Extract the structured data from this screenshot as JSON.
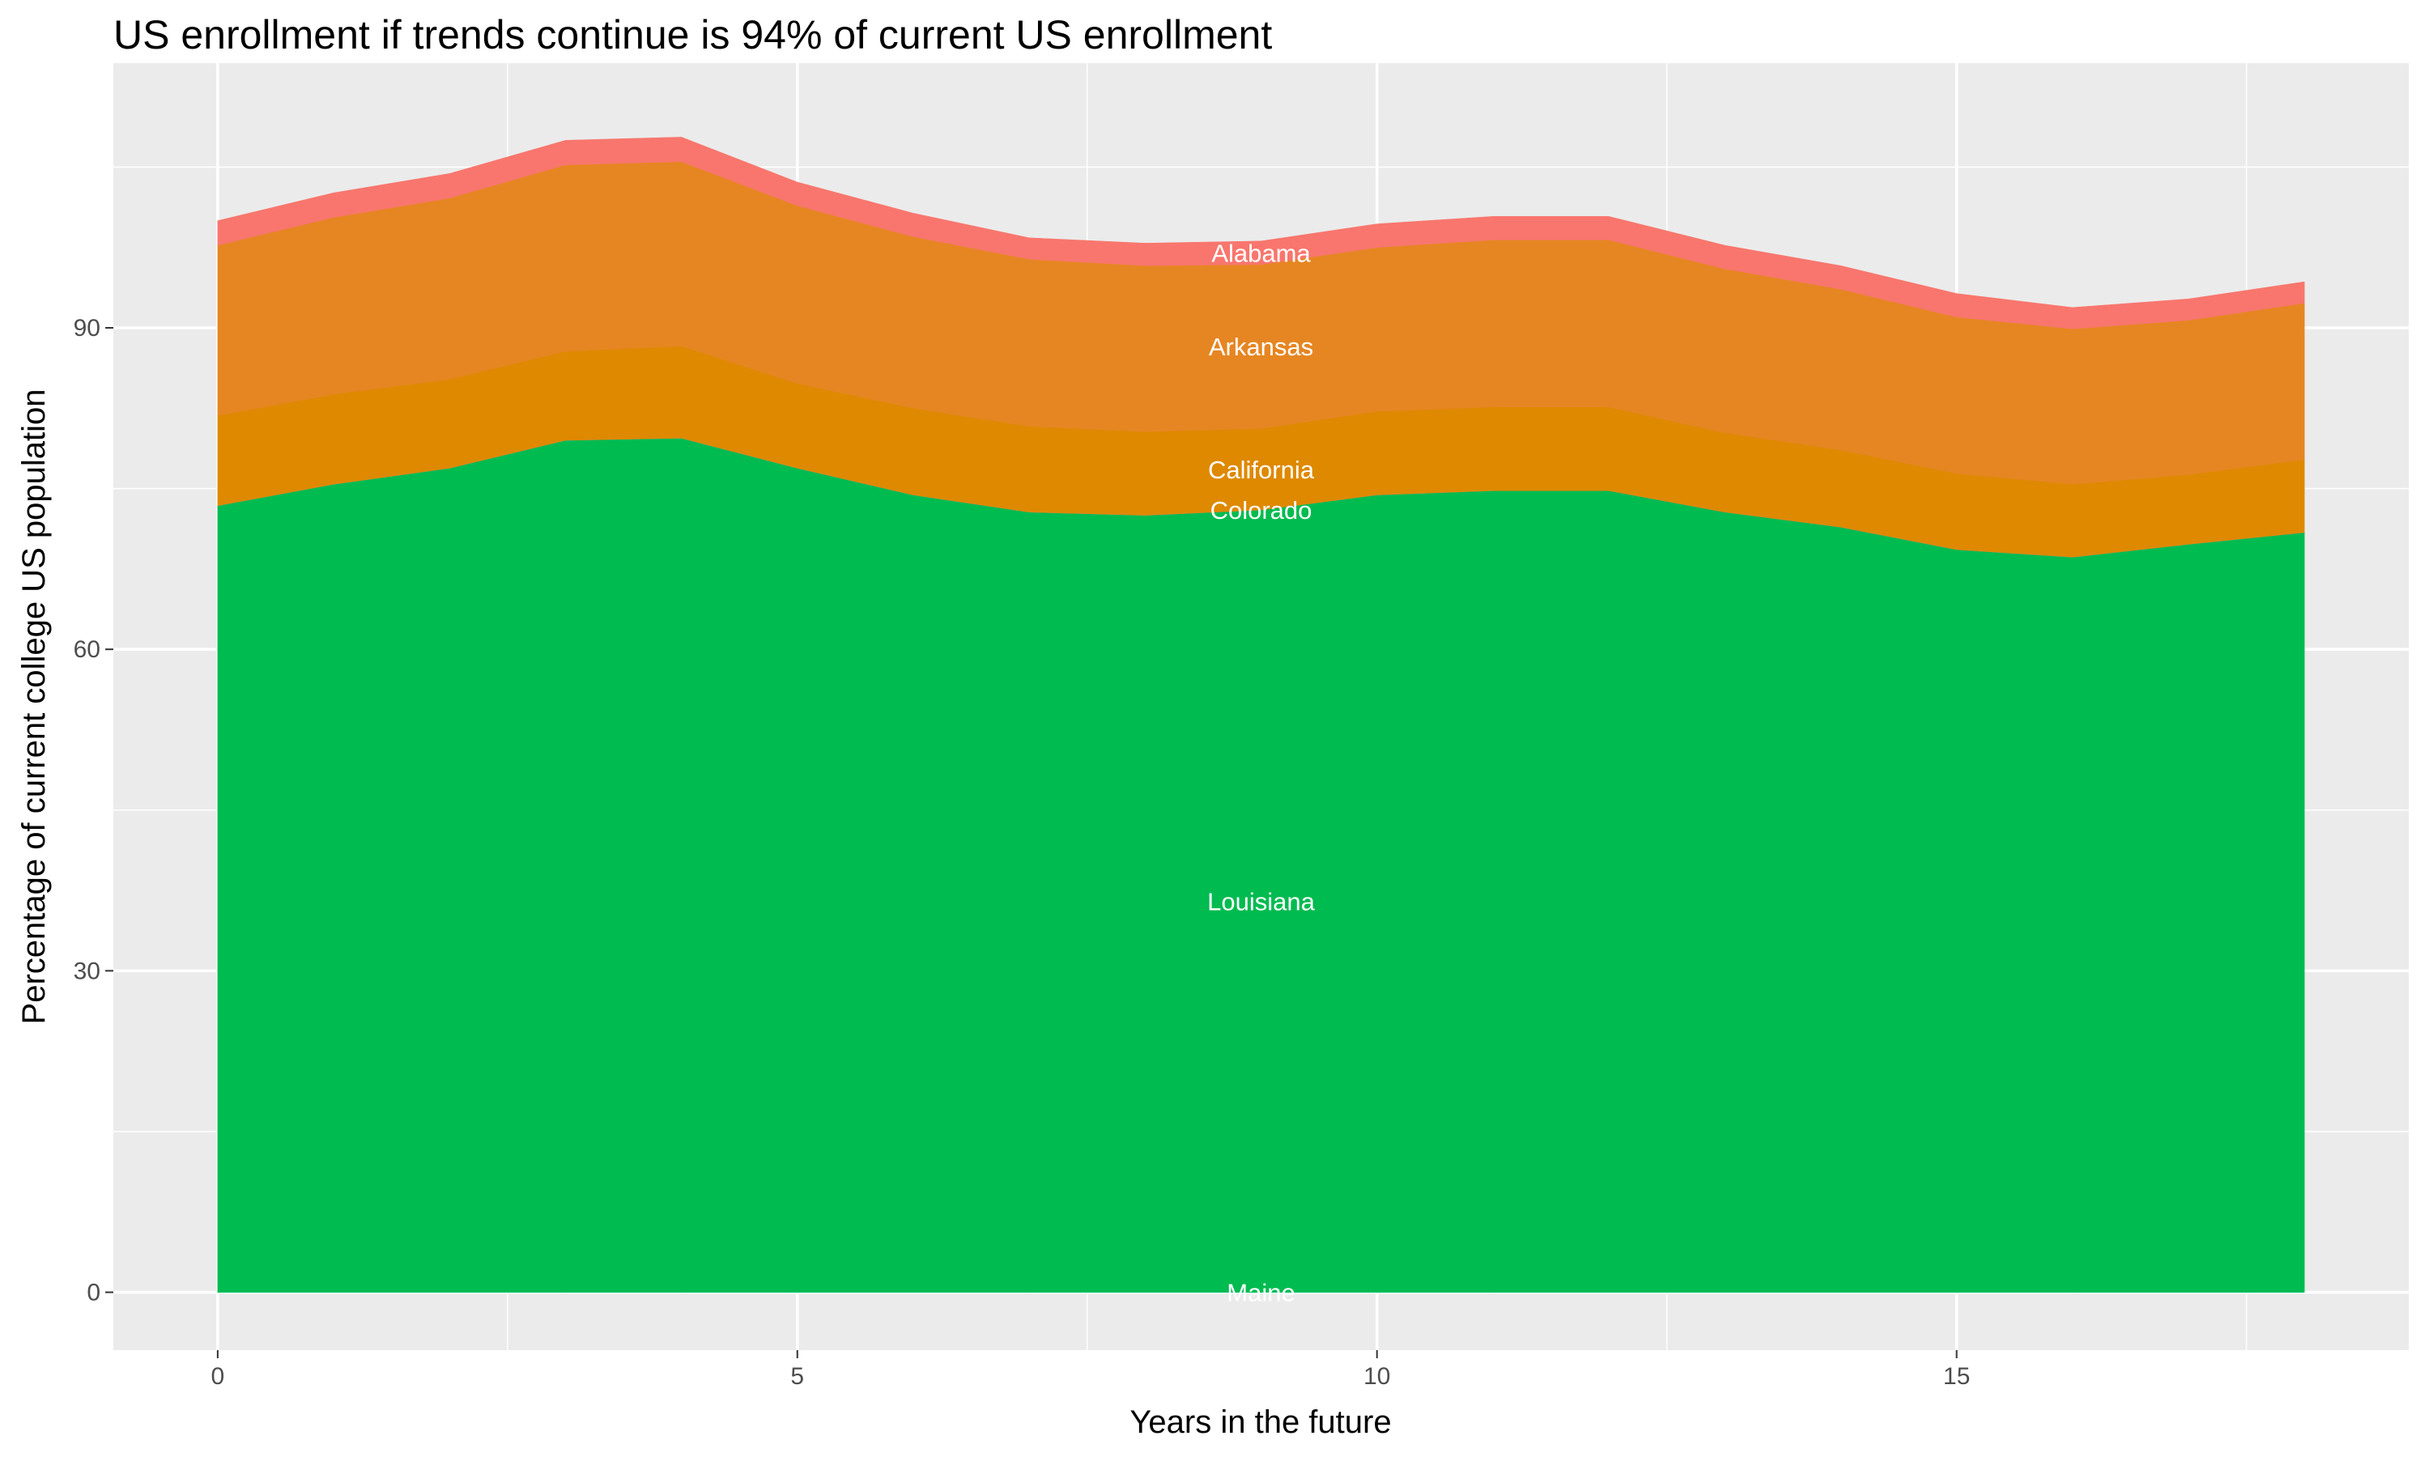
{
  "chart_data": {
    "type": "area",
    "stacked": true,
    "title": "US enrollment if trends continue is 94% of current US enrollment",
    "xlabel": "Years in the future",
    "ylabel": "Percentage of current college US population",
    "xlim": [
      -0.9,
      18.9
    ],
    "ylim": [
      -5.4,
      114.7
    ],
    "xticks": [
      0,
      5,
      10,
      15
    ],
    "yticks": [
      0,
      30,
      60,
      90
    ],
    "grid": true,
    "legend": "none (direct labels at x = 9)",
    "label_x": 9,
    "x": [
      0,
      1,
      2,
      3,
      4,
      5,
      6,
      7,
      8,
      9,
      10,
      11,
      12,
      13,
      14,
      15,
      16,
      17,
      18
    ],
    "series": [
      {
        "name": "Maine",
        "color": "#00BFC4",
        "values": [
          0,
          0,
          0,
          0,
          0,
          0,
          0,
          0,
          0,
          0,
          0,
          0,
          0,
          0,
          0,
          0,
          0,
          0,
          0
        ]
      },
      {
        "name": "Louisiana",
        "color": "#00BB50",
        "values": [
          73.4,
          75.4,
          76.9,
          79.5,
          79.7,
          76.9,
          74.4,
          72.8,
          72.5,
          73.0,
          74.4,
          74.8,
          74.8,
          72.8,
          71.4,
          69.3,
          68.6,
          69.8,
          70.9
        ]
      },
      {
        "name": "Colorado",
        "color": "#619CFF",
        "values": [
          0,
          0,
          0,
          0,
          0,
          0,
          0,
          0,
          0,
          0,
          0,
          0,
          0,
          0,
          0,
          0,
          0,
          0,
          0
        ]
      },
      {
        "name": "California",
        "color": "#DE8900",
        "values": [
          8.4,
          8.4,
          8.3,
          8.3,
          8.6,
          7.9,
          8.1,
          8.0,
          7.8,
          7.6,
          7.8,
          7.8,
          7.8,
          7.4,
          7.2,
          7.1,
          6.8,
          6.5,
          6.8
        ]
      },
      {
        "name": "Arkansas",
        "color": "#E68622",
        "values": [
          15.9,
          16.5,
          16.9,
          17.4,
          17.2,
          16.6,
          16.0,
          15.6,
          15.5,
          15.3,
          15.3,
          15.6,
          15.6,
          15.3,
          15.0,
          14.6,
          14.5,
          14.4,
          14.6
        ]
      },
      {
        "name": "Alabama",
        "color": "#F8766D",
        "values": [
          2.3,
          2.3,
          2.3,
          2.3,
          2.3,
          2.2,
          2.2,
          2.0,
          2.1,
          2.2,
          2.2,
          2.2,
          2.2,
          2.2,
          2.2,
          2.2,
          2.0,
          2.0,
          2.0
        ]
      }
    ]
  }
}
